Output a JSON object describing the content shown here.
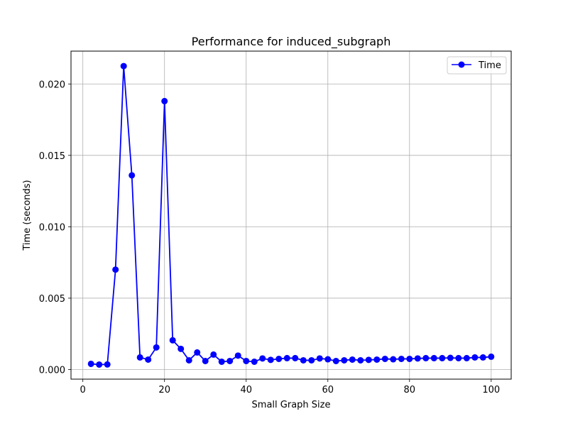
{
  "chart_data": {
    "type": "line",
    "title": "Performance for induced_subgraph",
    "xlabel": "Small Graph Size",
    "ylabel": "Time (seconds)",
    "xlim": [
      -2.9,
      104.9
    ],
    "ylim": [
      -0.00067,
      0.0223
    ],
    "xticks": [
      0,
      20,
      40,
      60,
      80,
      100
    ],
    "xtick_labels": [
      "0",
      "20",
      "40",
      "60",
      "80",
      "100"
    ],
    "yticks": [
      0.0,
      0.005,
      0.01,
      0.015,
      0.02
    ],
    "ytick_labels": [
      "0.000",
      "0.005",
      "0.010",
      "0.015",
      "0.020"
    ],
    "grid": true,
    "legend_position": "top-right",
    "series": [
      {
        "name": "Time",
        "color": "#0000ff",
        "marker": "circle",
        "x": [
          2,
          4,
          6,
          8,
          10,
          12,
          14,
          16,
          18,
          20,
          22,
          24,
          26,
          28,
          30,
          32,
          34,
          36,
          38,
          40,
          42,
          44,
          46,
          48,
          50,
          52,
          54,
          56,
          58,
          60,
          62,
          64,
          66,
          68,
          70,
          72,
          74,
          76,
          78,
          80,
          82,
          84,
          86,
          88,
          90,
          92,
          94,
          96,
          98,
          100
        ],
        "y": [
          0.0004,
          0.00035,
          0.00036,
          0.007,
          0.02125,
          0.0136,
          0.00085,
          0.0007,
          0.00155,
          0.0188,
          0.00205,
          0.00145,
          0.00065,
          0.0012,
          0.0006,
          0.00105,
          0.00055,
          0.0006,
          0.00098,
          0.0006,
          0.00055,
          0.00078,
          0.00068,
          0.00075,
          0.0008,
          0.0008,
          0.00065,
          0.00065,
          0.00078,
          0.00072,
          0.0006,
          0.00065,
          0.0007,
          0.00065,
          0.00068,
          0.0007,
          0.00075,
          0.00072,
          0.00075,
          0.00075,
          0.00078,
          0.0008,
          0.0008,
          0.0008,
          0.00082,
          0.0008,
          0.0008,
          0.00085,
          0.00085,
          0.0009
        ]
      }
    ]
  }
}
